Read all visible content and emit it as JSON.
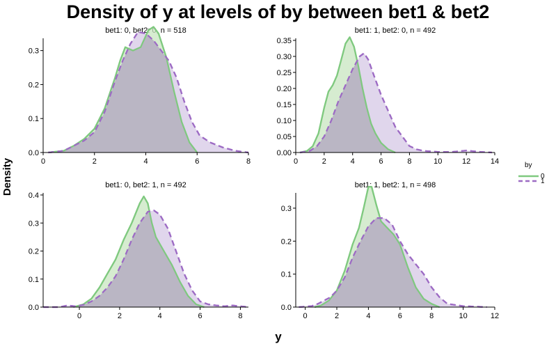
{
  "title": "Density of y at levels of by between bet1 & bet2",
  "xlabel": "y",
  "ylabel": "Density",
  "legend": {
    "title": "by",
    "position": "right",
    "entries": [
      {
        "name": "0",
        "color": "#7fc97f",
        "fill": "#c8e6c0",
        "dash": "solid"
      },
      {
        "name": "1",
        "color": "#9d6bc4",
        "fill": "#d6c8e6",
        "dash": "dashed"
      }
    ]
  },
  "chart_data": [
    {
      "type": "area",
      "subtitle": "bet1: 0, bet2: 0, n = 518",
      "xlim": [
        0,
        8
      ],
      "ylim": [
        0,
        0.33
      ],
      "xticks": [
        0,
        2,
        4,
        6,
        8
      ],
      "yticks": [
        0.0,
        0.1,
        0.2,
        0.3
      ],
      "yticklabels": [
        "0.0",
        "0.1",
        "0.2",
        "0.3"
      ],
      "series": [
        {
          "name": "0",
          "x": [
            0.2,
            0.8,
            1.2,
            1.6,
            2.0,
            2.4,
            2.8,
            3.0,
            3.2,
            3.5,
            3.8,
            4.1,
            4.3,
            4.5,
            4.8,
            5.1,
            5.4,
            5.7,
            6.0
          ],
          "y": [
            0.0,
            0.005,
            0.02,
            0.04,
            0.07,
            0.13,
            0.22,
            0.27,
            0.31,
            0.3,
            0.31,
            0.36,
            0.37,
            0.35,
            0.28,
            0.18,
            0.09,
            0.03,
            0.0
          ]
        },
        {
          "name": "1",
          "x": [
            0.2,
            0.8,
            1.2,
            1.6,
            2.0,
            2.4,
            2.8,
            3.1,
            3.4,
            3.7,
            4.0,
            4.3,
            4.6,
            4.9,
            5.2,
            5.5,
            5.8,
            6.1,
            6.5,
            7.0,
            7.5,
            8.0
          ],
          "y": [
            0.0,
            0.005,
            0.02,
            0.035,
            0.06,
            0.12,
            0.21,
            0.27,
            0.32,
            0.355,
            0.35,
            0.33,
            0.3,
            0.27,
            0.22,
            0.15,
            0.09,
            0.05,
            0.03,
            0.015,
            0.005,
            0.0
          ]
        }
      ]
    },
    {
      "type": "area",
      "subtitle": "bet1: 1, bet2: 0, n = 492",
      "xlim": [
        0,
        14
      ],
      "ylim": [
        0,
        0.35
      ],
      "xticks": [
        0,
        2,
        4,
        6,
        8,
        10,
        12,
        14
      ],
      "yticks": [
        0.0,
        0.05,
        0.1,
        0.15,
        0.2,
        0.25,
        0.3,
        0.35
      ],
      "yticklabels": [
        "0.00",
        "0.05",
        "0.10",
        "0.15",
        "0.20",
        "0.25",
        "0.30",
        "0.35"
      ],
      "series": [
        {
          "name": "0",
          "x": [
            0.3,
            0.8,
            1.2,
            1.6,
            2.0,
            2.3,
            2.6,
            2.9,
            3.2,
            3.5,
            3.8,
            4.1,
            4.4,
            4.7,
            5.0,
            5.3,
            5.6,
            6.0,
            6.5,
            7.0
          ],
          "y": [
            0.0,
            0.005,
            0.02,
            0.06,
            0.14,
            0.19,
            0.21,
            0.24,
            0.29,
            0.34,
            0.36,
            0.33,
            0.27,
            0.2,
            0.14,
            0.09,
            0.06,
            0.03,
            0.01,
            0.0
          ]
        },
        {
          "name": "1",
          "x": [
            0.3,
            1.0,
            1.5,
            2.0,
            2.5,
            3.0,
            3.5,
            4.0,
            4.5,
            4.8,
            5.1,
            5.5,
            6.0,
            6.5,
            7.0,
            7.5,
            8.0,
            8.5,
            9.0,
            10.0,
            11.0,
            12.0,
            12.5,
            13.0,
            13.8
          ],
          "y": [
            0.0,
            0.005,
            0.02,
            0.05,
            0.1,
            0.16,
            0.21,
            0.26,
            0.3,
            0.31,
            0.29,
            0.24,
            0.18,
            0.13,
            0.08,
            0.05,
            0.02,
            0.01,
            0.005,
            0.002,
            0.002,
            0.006,
            0.004,
            0.002,
            0.0
          ]
        }
      ]
    },
    {
      "type": "area",
      "subtitle": "bet1: 0, bet2: 1, n = 492",
      "xlim": [
        -1.8,
        8.4
      ],
      "ylim": [
        0,
        0.4
      ],
      "xticks": [
        0,
        2,
        4,
        6,
        8
      ],
      "yticks": [
        0.0,
        0.1,
        0.2,
        0.3,
        0.4
      ],
      "yticklabels": [
        "0.0",
        "0.1",
        "0.2",
        "0.3",
        "0.4"
      ],
      "series": [
        {
          "name": "0",
          "x": [
            -0.3,
            0.2,
            0.6,
            1.0,
            1.4,
            1.8,
            2.2,
            2.6,
            3.0,
            3.2,
            3.4,
            3.6,
            3.8,
            4.2,
            4.6,
            5.0,
            5.4,
            5.8,
            6.2
          ],
          "y": [
            0.0,
            0.01,
            0.03,
            0.07,
            0.12,
            0.17,
            0.24,
            0.3,
            0.37,
            0.395,
            0.37,
            0.3,
            0.25,
            0.2,
            0.15,
            0.09,
            0.04,
            0.01,
            0.0
          ]
        },
        {
          "name": "1",
          "x": [
            -1.8,
            -1.0,
            -0.6,
            -0.2,
            0.2,
            0.6,
            1.0,
            1.4,
            1.8,
            2.2,
            2.6,
            3.0,
            3.4,
            3.7,
            4.0,
            4.4,
            4.8,
            5.2,
            5.6,
            6.0,
            6.4,
            6.8,
            7.2,
            7.6,
            8.0,
            8.4
          ],
          "y": [
            0.0,
            0.0,
            0.006,
            0.003,
            0.008,
            0.02,
            0.04,
            0.07,
            0.11,
            0.17,
            0.24,
            0.3,
            0.34,
            0.345,
            0.33,
            0.28,
            0.2,
            0.12,
            0.06,
            0.02,
            0.01,
            0.006,
            0.003,
            0.006,
            0.003,
            0.0
          ]
        }
      ]
    },
    {
      "type": "area",
      "subtitle": "bet1: 1, bet2: 1, n = 498",
      "xlim": [
        -0.6,
        12
      ],
      "ylim": [
        0,
        0.34
      ],
      "xticks": [
        0,
        2,
        4,
        6,
        8,
        10,
        12
      ],
      "yticks": [
        0.0,
        0.1,
        0.2,
        0.3
      ],
      "yticklabels": [
        "0.0",
        "0.1",
        "0.2",
        "0.3"
      ],
      "series": [
        {
          "name": "0",
          "x": [
            0.6,
            1.0,
            1.5,
            2.0,
            2.5,
            3.0,
            3.4,
            3.7,
            4.0,
            4.2,
            4.5,
            4.8,
            5.2,
            5.6,
            6.0,
            6.5,
            7.0,
            7.5,
            8.0,
            8.5
          ],
          "y": [
            0.0,
            0.005,
            0.02,
            0.05,
            0.11,
            0.19,
            0.24,
            0.3,
            0.365,
            0.365,
            0.31,
            0.26,
            0.24,
            0.22,
            0.19,
            0.12,
            0.06,
            0.025,
            0.01,
            0.0
          ]
        },
        {
          "name": "1",
          "x": [
            -0.4,
            0.4,
            0.8,
            1.2,
            1.6,
            2.0,
            2.5,
            3.0,
            3.5,
            4.0,
            4.5,
            5.0,
            5.5,
            6.0,
            6.5,
            7.0,
            7.5,
            8.0,
            8.5,
            9.0,
            10.0,
            11.0,
            11.5
          ],
          "y": [
            0.0,
            0.003,
            0.01,
            0.02,
            0.03,
            0.05,
            0.09,
            0.15,
            0.2,
            0.245,
            0.27,
            0.27,
            0.25,
            0.2,
            0.16,
            0.13,
            0.1,
            0.06,
            0.03,
            0.01,
            0.003,
            0.001,
            0.0
          ]
        }
      ]
    }
  ]
}
